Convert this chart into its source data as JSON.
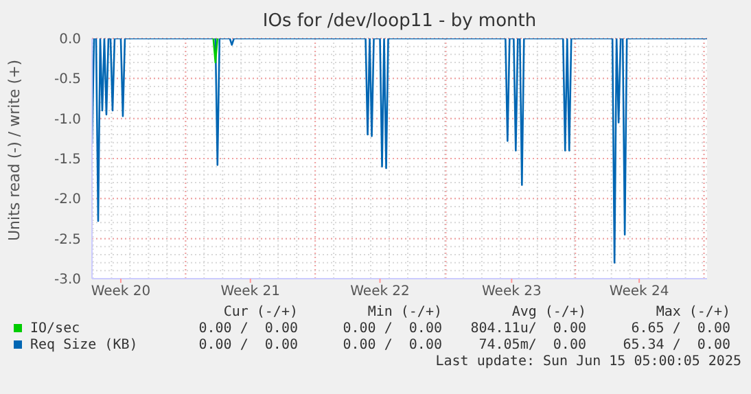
{
  "chart_data": {
    "type": "line",
    "title": "IOs for /dev/loop11 - by month",
    "ylabel": "Units read (-) / write (+)",
    "categories": [
      null,
      null,
      null,
      null,
      null,
      null,
      null,
      null,
      null,
      null,
      null,
      null,
      null,
      null,
      "Week 20",
      null,
      null,
      null,
      null,
      null,
      null,
      null,
      null,
      null,
      null,
      null,
      null,
      null,
      null,
      null,
      null,
      null,
      null,
      null,
      null,
      null,
      null,
      null,
      null,
      null,
      null,
      null,
      null,
      null,
      null,
      null,
      null,
      null,
      null,
      null,
      null,
      null,
      null,
      null,
      null,
      null,
      null,
      null,
      null,
      null,
      null,
      null,
      null,
      null,
      null,
      null,
      null,
      null,
      null,
      null,
      null,
      null,
      null,
      null,
      null,
      null,
      null,
      "Week 21",
      null,
      null,
      null,
      null,
      null,
      null,
      null,
      null,
      null,
      null,
      null,
      null,
      null,
      null,
      null,
      null,
      null,
      null,
      null,
      null,
      null,
      null,
      null,
      null,
      null,
      null,
      null,
      null,
      null,
      null,
      null,
      null,
      null,
      null,
      null,
      null,
      null,
      null,
      null,
      null,
      null,
      null,
      null,
      null,
      null,
      null,
      null,
      null,
      null,
      null,
      null,
      null,
      null,
      null,
      null,
      null,
      null,
      null,
      null,
      null,
      null,
      null,
      "Week 22",
      null,
      null,
      null,
      null,
      null,
      null,
      null,
      null,
      null,
      null,
      null,
      null,
      null,
      null,
      null,
      null,
      null,
      null,
      null,
      null,
      null,
      null,
      null,
      null,
      null,
      null,
      null,
      null,
      null,
      null,
      null,
      null,
      null,
      null,
      null,
      null,
      null,
      null,
      null,
      null,
      null,
      null,
      null,
      null,
      null,
      null,
      null,
      null,
      null,
      null,
      null,
      null,
      null,
      null,
      null,
      null,
      null,
      null,
      null,
      null,
      null,
      null,
      null,
      "Week 23",
      null,
      null,
      null,
      null,
      null,
      null,
      null,
      null,
      null,
      null,
      null,
      null,
      null,
      null,
      null,
      null,
      null,
      null,
      null,
      null,
      null,
      null,
      null,
      null,
      null,
      null,
      null,
      null,
      null,
      null,
      null,
      null,
      null,
      null,
      null,
      null,
      null,
      null,
      null,
      null,
      null,
      null,
      null,
      null,
      null,
      null,
      null,
      null,
      null,
      null,
      null,
      null,
      null,
      null,
      null,
      null,
      null,
      null,
      null,
      null,
      null,
      "Week 24",
      null,
      null,
      null,
      null,
      null,
      null,
      null,
      null,
      null,
      null,
      null,
      null,
      null,
      null,
      null,
      null,
      null,
      null,
      null,
      null,
      null,
      null,
      null,
      null,
      null,
      null,
      null,
      null,
      null,
      null,
      null,
      null,
      null
    ],
    "ylim": [
      -3,
      0
    ],
    "yticks": [
      {
        "value": -3,
        "label": "-3.0"
      },
      {
        "value": -2.5,
        "label": "-2.5"
      },
      {
        "value": -2,
        "label": "-2.0"
      },
      {
        "value": -1.5,
        "label": "-1.5"
      },
      {
        "value": -1,
        "label": "-1.0"
      },
      {
        "value": -0.5,
        "label": "-0.5"
      },
      {
        "value": 0,
        "label": "0.0"
      }
    ],
    "grid": true,
    "legend": "bottom",
    "marker": "none",
    "line_style": "solid",
    "series": [
      {
        "name": "IO/sec",
        "color": "#00cc00",
        "values": [
          null,
          null,
          null,
          null,
          null,
          null,
          null,
          null,
          null,
          null,
          null,
          null,
          null,
          null,
          null,
          null,
          null,
          null,
          null,
          null,
          null,
          null,
          null,
          null,
          null,
          null,
          null,
          null,
          null,
          null,
          null,
          null,
          null,
          null,
          null,
          null,
          null,
          null,
          null,
          null,
          null,
          null,
          null,
          null,
          null,
          null,
          null,
          null,
          null,
          null,
          null,
          null,
          null,
          null,
          null,
          null,
          null,
          null,
          null,
          0,
          -0.3,
          0,
          null,
          null,
          null,
          null,
          null,
          null,
          null,
          null,
          null,
          null,
          null,
          null,
          null,
          null,
          null,
          null,
          null,
          null,
          null,
          null,
          null,
          null,
          null,
          null,
          null,
          null,
          null,
          null,
          null,
          null,
          null,
          null,
          null,
          null,
          null,
          null,
          null,
          null,
          null,
          null,
          null,
          null,
          null,
          null,
          null,
          null,
          null,
          null,
          null,
          null,
          null,
          null,
          null,
          null,
          null,
          null,
          null,
          null,
          null,
          null,
          null,
          null,
          null,
          null,
          null,
          null,
          null,
          null,
          null,
          null,
          null,
          null,
          null,
          null,
          null,
          null,
          null,
          null,
          null,
          null,
          null,
          null,
          null,
          null,
          null,
          null,
          null,
          null,
          null,
          null,
          null,
          null,
          null,
          null,
          null,
          null,
          null,
          null,
          null,
          null,
          null,
          null,
          null,
          null,
          null,
          null,
          null,
          null,
          null,
          null,
          null,
          null,
          null,
          null,
          null,
          null,
          null,
          null,
          null,
          null,
          null,
          null,
          null,
          null,
          null,
          null,
          null,
          null,
          null,
          null,
          null,
          null,
          null,
          null,
          null,
          null,
          null,
          null,
          null,
          null,
          null,
          null,
          null,
          null,
          null,
          null,
          null,
          null,
          null,
          null,
          null,
          null,
          null,
          null,
          null,
          null,
          null,
          null,
          null,
          null,
          null,
          null,
          null,
          null,
          null,
          null,
          null,
          null,
          null,
          null,
          null,
          null,
          null,
          null,
          null,
          null,
          null,
          null,
          null,
          null,
          null,
          null,
          null,
          null,
          null,
          null,
          null,
          null,
          null,
          null,
          null,
          null,
          null,
          null,
          null,
          null,
          null,
          null,
          null,
          null,
          null,
          null,
          null,
          null,
          null,
          null,
          null,
          null,
          null,
          null,
          null,
          null,
          null,
          null,
          null,
          null,
          null,
          null,
          null,
          null,
          null,
          null,
          null,
          null,
          null,
          null,
          null,
          null,
          null,
          null,
          null,
          null,
          null,
          null,
          null,
          null,
          null,
          null
        ]
      },
      {
        "name": "Req Size (KB)",
        "color": "#0066b3",
        "values": [
          -1.32,
          0,
          0,
          -2.28,
          0,
          -0.9,
          0,
          -0.95,
          0,
          0,
          -0.9,
          0,
          0,
          0,
          0,
          -0.97,
          0,
          0,
          0,
          0,
          0,
          0,
          0,
          0,
          0,
          0,
          0,
          0,
          0,
          0,
          0,
          0,
          0,
          0,
          0,
          0,
          0,
          0,
          0,
          0,
          0,
          0,
          0,
          0,
          0,
          0,
          0,
          0,
          0,
          0,
          0,
          0,
          0,
          0,
          0,
          0,
          0,
          0,
          0,
          0,
          0,
          -1.58,
          0,
          0,
          0,
          0,
          0,
          0,
          -0.08,
          0,
          0,
          0,
          0,
          0,
          0,
          0,
          0,
          0,
          0,
          0,
          0,
          0,
          0,
          0,
          0,
          0,
          0,
          0,
          0,
          0,
          0,
          0,
          0,
          0,
          0,
          0,
          0,
          0,
          0,
          0,
          0,
          0,
          0,
          0,
          0,
          0,
          0,
          0,
          0,
          0,
          0,
          0,
          0,
          0,
          0,
          0,
          0,
          0,
          0,
          0,
          0,
          0,
          0,
          0,
          0,
          0,
          0,
          0,
          0,
          0,
          0,
          0,
          0,
          0,
          -1.2,
          0,
          -1.22,
          0,
          0,
          0,
          0,
          -1.6,
          0,
          -1.62,
          0,
          0,
          0,
          0,
          0,
          0,
          0,
          0,
          0,
          0,
          0,
          0,
          0,
          0,
          0,
          0,
          0,
          0,
          0,
          0,
          0,
          0,
          0,
          0,
          0,
          0,
          0,
          0,
          0,
          0,
          0,
          0,
          0,
          0,
          0,
          0,
          0,
          0,
          0,
          0,
          0,
          0,
          0,
          0,
          0,
          0,
          0,
          0,
          0,
          0,
          0,
          0,
          0,
          0,
          0,
          0,
          0,
          0,
          -1.28,
          0,
          0,
          0,
          -1.4,
          0,
          0,
          -1.83,
          0,
          0,
          0,
          0,
          0,
          0,
          0,
          0,
          0,
          0,
          0,
          0,
          0,
          0,
          0,
          0,
          0,
          0,
          0,
          0,
          -1.4,
          0,
          -1.4,
          0,
          0,
          0,
          0,
          0,
          0,
          0,
          0,
          0,
          0,
          0,
          0,
          0,
          0,
          0,
          0,
          0,
          0,
          0,
          0,
          0,
          -2.8,
          0,
          -1.05,
          0,
          0,
          -2.45,
          0,
          0,
          0,
          0,
          0,
          0,
          0,
          0,
          0,
          0,
          0,
          0,
          0,
          0,
          0,
          0,
          0,
          0,
          0,
          0,
          0,
          0,
          0,
          0,
          0,
          0,
          0,
          0,
          0,
          0,
          0,
          0,
          0,
          0,
          0,
          0,
          0,
          0,
          0,
          0
        ]
      }
    ],
    "annotations": [
      "Cur (-/+)",
      "Min (-/+)",
      "Avg (-/+)",
      "Max (-/+)",
      "0.00 /  0.00",
      "0.00 /  0.00",
      "804.11u/  0.00",
      "6.65 /  0.00",
      "0.00 /  0.00",
      "0.00 /  0.00",
      "74.05m/  0.00",
      "65.34 /  0.00",
      "Last update: Sun Jun 15 05:00:05 2025"
    ]
  }
}
